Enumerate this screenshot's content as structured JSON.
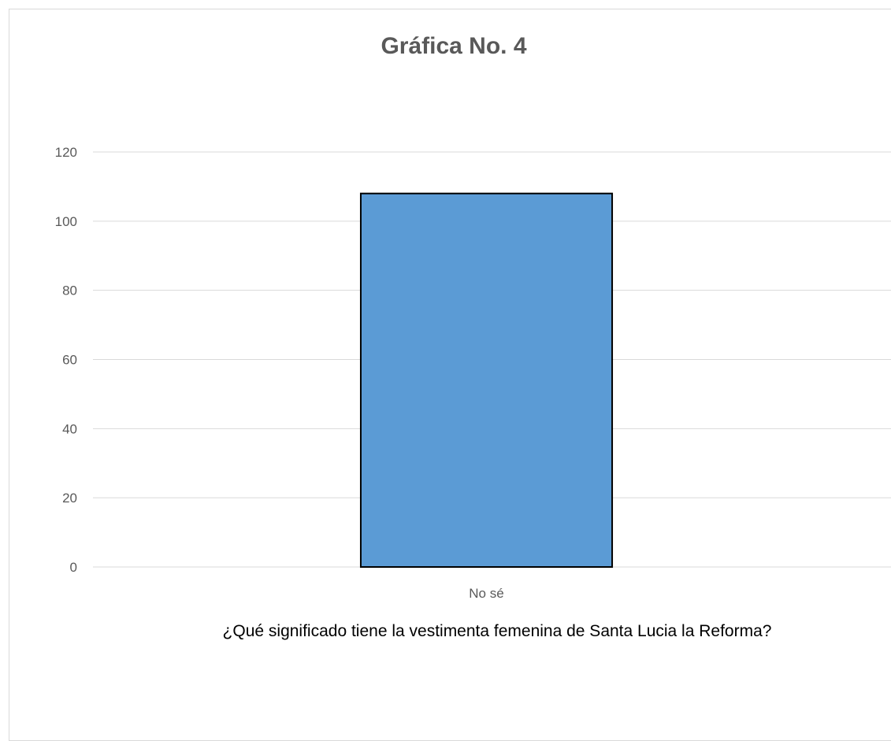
{
  "chart_data": {
    "type": "bar",
    "title": "Gráfica No. 4",
    "xlabel": "¿Qué significado tiene la vestimenta femenina de Santa Lucia la Reforma?",
    "ylabel": "",
    "categories": [
      "No sé"
    ],
    "values": [
      108
    ],
    "ylim": [
      0,
      120
    ],
    "yticks": [
      0,
      20,
      40,
      60,
      80,
      100,
      120
    ],
    "grid": true,
    "legend": "none",
    "bar_color": "#5b9bd5",
    "bar_border_color": "#000000"
  }
}
